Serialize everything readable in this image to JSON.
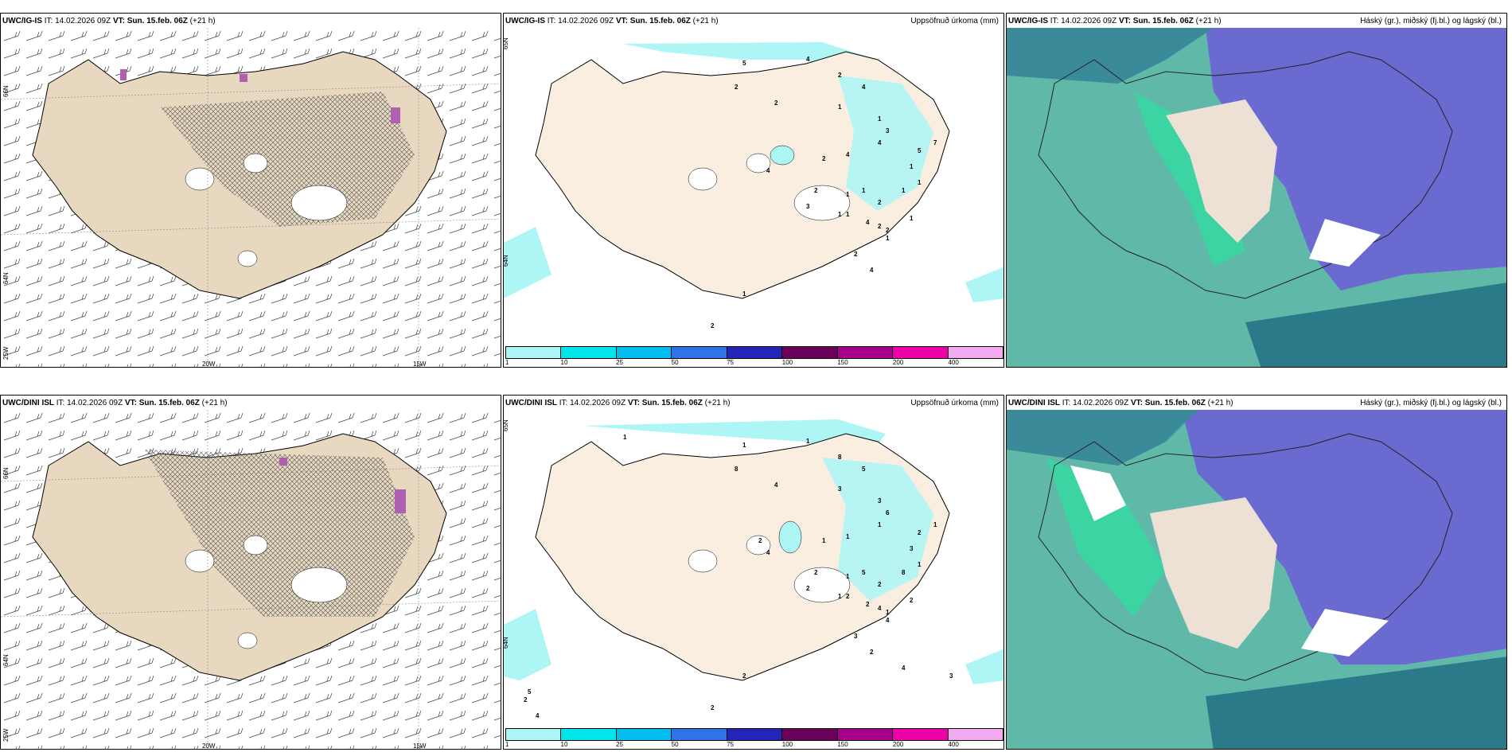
{
  "panels": [
    {
      "model": "UWC/IG-IS",
      "it_label": "IT:",
      "it": "14.02.2026 09Z",
      "vt_label": "VT:",
      "vt": "Sun. 15.feb. 06Z",
      "lead": "(+21 h)",
      "title_right": "",
      "lat_labels": [
        "66N",
        "64N",
        "25W"
      ],
      "lon_labels": [
        "20W",
        "15W"
      ]
    },
    {
      "model": "UWC/IG-IS",
      "it_label": "IT:",
      "it": "14.02.2026 09Z",
      "vt_label": "VT:",
      "vt": "Sun. 15.feb. 06Z",
      "lead": "(+21 h)",
      "title_right": "Uppsöfnuð úrkoma (mm)",
      "lat_labels": [
        "65N",
        "64N"
      ],
      "numbers": [
        "5",
        "4",
        "2",
        "2",
        "4",
        "2",
        "1",
        "1",
        "3",
        "4",
        "7",
        "5",
        "4",
        "2",
        "1",
        "4",
        "2",
        "1",
        "2",
        "1",
        "1",
        "1",
        "2",
        "2",
        "3",
        "1",
        "2",
        "1",
        "1",
        "4",
        "1",
        "4",
        "1",
        "2"
      ]
    },
    {
      "model": "UWC/IG-IS",
      "it_label": "IT:",
      "it": "14.02.2026 09Z",
      "vt_label": "VT:",
      "vt": "Sun. 15.feb. 06Z",
      "lead": "(+21 h)",
      "title_right": "Háský (gr.), miðský (fj.bl.) og lágský (bl.)"
    },
    {
      "model": "UWC/DINI ISL",
      "it_label": "IT:",
      "it": "14.02.2026 09Z",
      "vt_label": "VT:",
      "vt": "Sun. 15.feb. 06Z",
      "lead": "(+21 h)",
      "title_right": "",
      "lat_labels": [
        "66N",
        "64N",
        "25W"
      ],
      "lon_labels": [
        "20W",
        "15W"
      ]
    },
    {
      "model": "UWC/DINI ISL",
      "it_label": "IT:",
      "it": "14.02.2026 09Z",
      "vt_label": "VT:",
      "vt": "Sun. 15.feb. 06Z",
      "lead": "(+21 h)",
      "title_right": "Uppsöfnuð úrkoma (mm)",
      "lat_labels": [
        "65N",
        "64N"
      ],
      "numbers": [
        "1",
        "1",
        "8",
        "8",
        "5",
        "4",
        "3",
        "3",
        "6",
        "1",
        "1",
        "2",
        "1",
        "1",
        "3",
        "4",
        "2",
        "1",
        "2",
        "5",
        "8",
        "2",
        "4",
        "1",
        "2",
        "2",
        "3",
        "2",
        "1",
        "2",
        "4",
        "2",
        "1",
        "2",
        "2",
        "4",
        "5",
        "4",
        "3",
        "2",
        "1"
      ]
    },
    {
      "model": "UWC/DINI ISL",
      "it_label": "IT:",
      "it": "14.02.2026 09Z",
      "vt_label": "VT:",
      "vt": "Sun. 15.feb. 06Z",
      "lead": "(+21 h)",
      "title_right": "Háský (gr.), miðský (fj.bl.) og lágský (bl.)"
    }
  ],
  "colorbar": {
    "labels": [
      "1",
      "10",
      "25",
      "50",
      "75",
      "100",
      "150",
      "200",
      "400"
    ],
    "colors": [
      "#aef5f5",
      "#00e5ee",
      "#00bfee",
      "#2e74e8",
      "#2424b8",
      "#6a0057",
      "#a8008a",
      "#ee00a8",
      "#f2aaf2"
    ]
  },
  "colors": {
    "land_tan": "#e8d8c0",
    "land_light": "#faeee0",
    "cloud_high": "#6a6ad0",
    "cloud_mid": "#5fb8a8",
    "cloud_low_green": "#2ee0a0",
    "sea_dark": "#2a7a8a"
  }
}
